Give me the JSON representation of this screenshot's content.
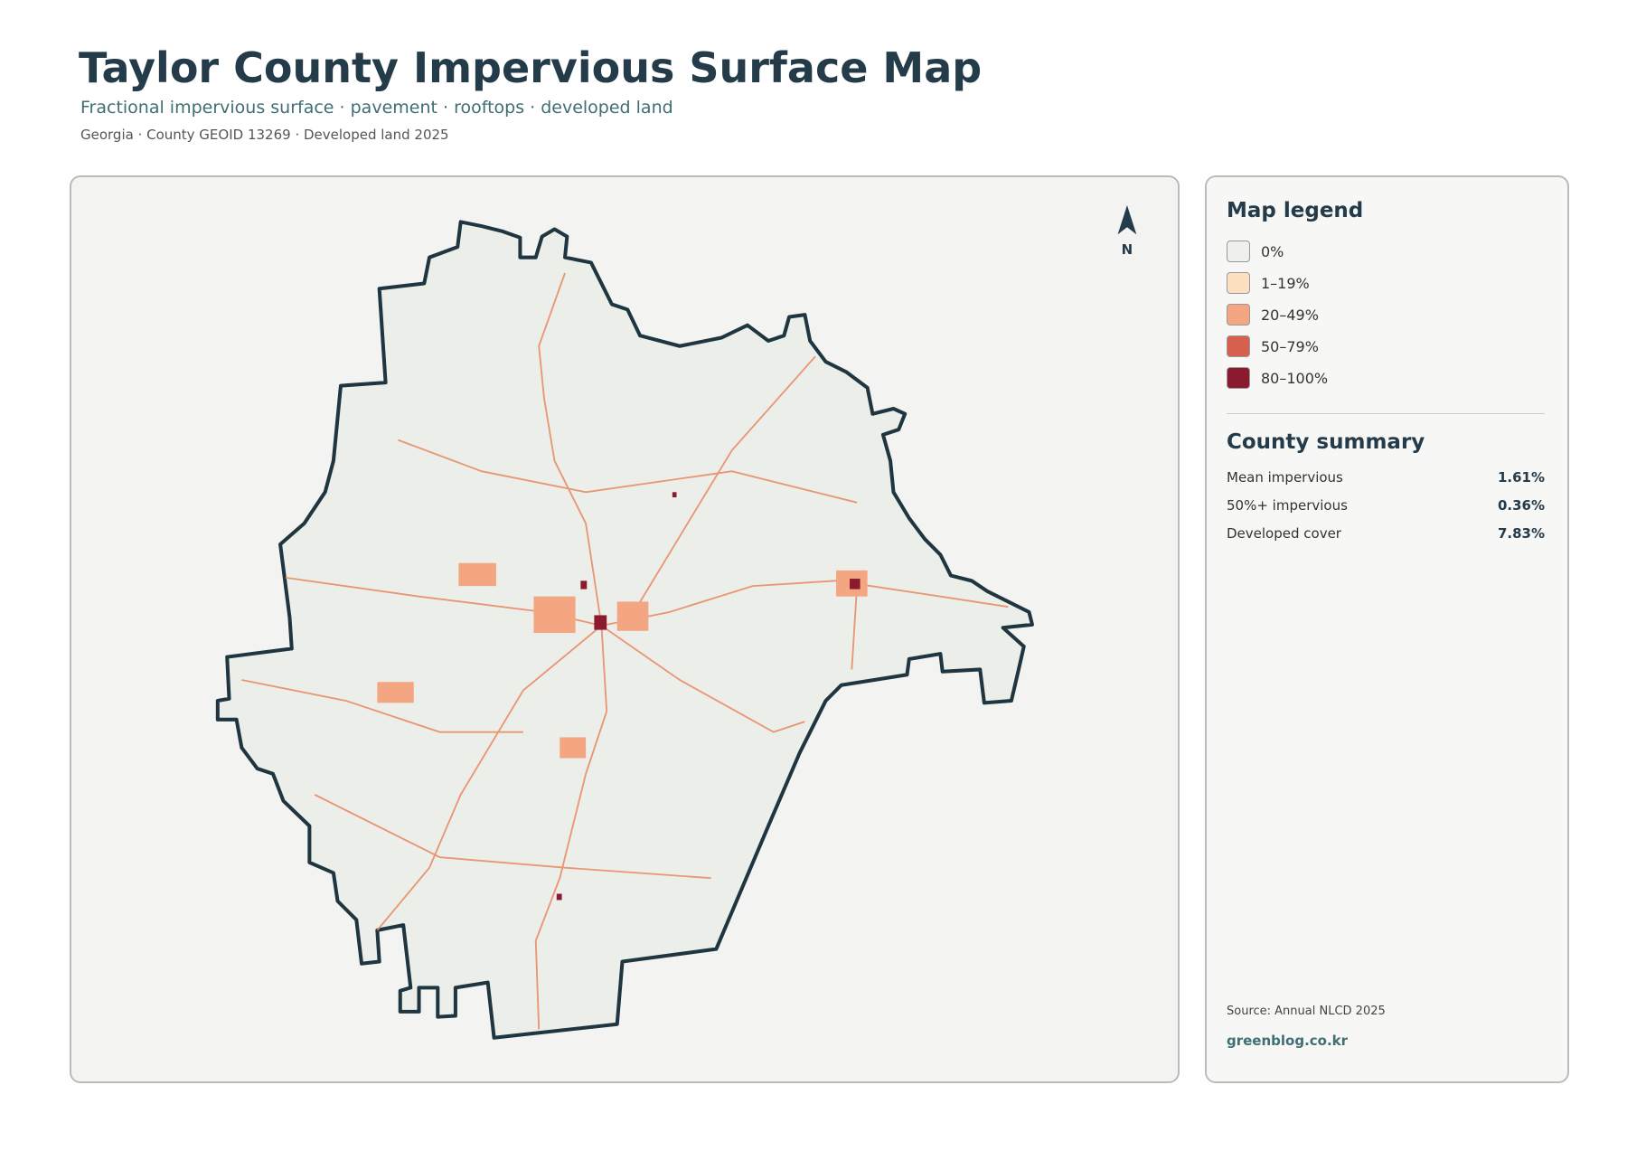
{
  "header": {
    "title": "Taylor County Impervious Surface Map",
    "subtitle": "Fractional impervious surface · pavement · rooftops · developed land",
    "meta": "Georgia · County GEOID 13269 · Developed land 2025"
  },
  "map": {
    "north": "N"
  },
  "legend": {
    "title": "Map legend",
    "items": [
      {
        "label": "0%",
        "color": "#efefec"
      },
      {
        "label": "1–19%",
        "color": "#fde0c2"
      },
      {
        "label": "20–49%",
        "color": "#f4a582"
      },
      {
        "label": "50–79%",
        "color": "#d6604d"
      },
      {
        "label": "80–100%",
        "color": "#8b1a2f"
      }
    ]
  },
  "summary": {
    "title": "County summary",
    "rows": [
      {
        "label": "Mean impervious",
        "value": "1.61%"
      },
      {
        "label": "50%+ impervious",
        "value": "0.36%"
      },
      {
        "label": "Developed cover",
        "value": "7.83%"
      }
    ]
  },
  "footer": {
    "source": "Source: Annual NLCD 2025",
    "site": "greenblog.co.kr"
  }
}
